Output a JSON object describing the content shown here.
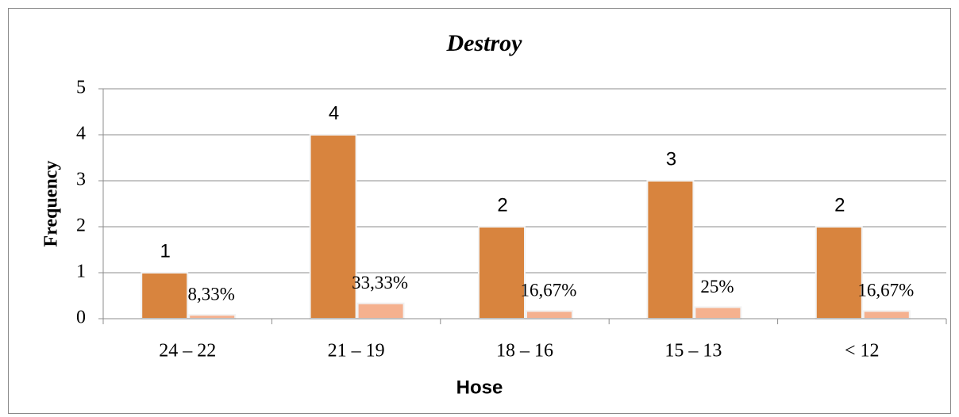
{
  "chart_data": {
    "type": "bar",
    "title": "Destroy",
    "x_label": "Hose",
    "y_label": "Frequency",
    "categories": [
      "24 – 22",
      "21 – 19",
      "18 – 16",
      "15 – 13",
      "< 12"
    ],
    "series": [
      {
        "color": "#d8843e",
        "values": [
          1,
          4,
          2,
          3,
          2
        ]
      },
      {
        "color": "#f5b18f",
        "values": [
          0.0833,
          0.3333,
          0.1667,
          0.25,
          0.1667
        ],
        "value_labels": [
          "8,33%",
          "33,33%",
          "16,67%",
          "25%",
          "16,67%"
        ]
      }
    ],
    "ylim": [
      0,
      5
    ],
    "yticks": [
      0,
      1,
      2,
      3,
      4,
      5
    ],
    "grid": true
  }
}
